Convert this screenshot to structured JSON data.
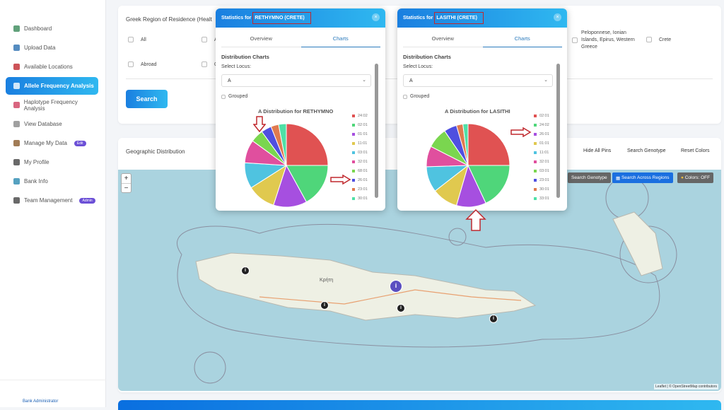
{
  "sidebar": {
    "items": [
      {
        "label": "Dashboard",
        "icon": "dashboard-icon",
        "color": "#3a8a5a"
      },
      {
        "label": "Upload Data",
        "icon": "upload-icon",
        "color": "#2a6fb0"
      },
      {
        "label": "Available Locations",
        "icon": "pin-icon",
        "color": "#c0282e"
      },
      {
        "label": "Allele Frequency Analysis",
        "icon": "chart-icon",
        "color": "#ffffff"
      },
      {
        "label": "Haplotype Frequency Analysis",
        "icon": "chart-icon",
        "color": "#d04060"
      },
      {
        "label": "View Database",
        "icon": "database-icon",
        "color": "#888888"
      },
      {
        "label": "Manage My Data",
        "icon": "pencil-icon",
        "color": "#8a5a2a",
        "badge": "Edit"
      },
      {
        "label": "My Profile",
        "icon": "user-icon",
        "color": "#444444"
      },
      {
        "label": "Bank Info",
        "icon": "bank-icon",
        "color": "#2a8ab0"
      },
      {
        "label": "Team Management",
        "icon": "team-icon",
        "color": "#444444",
        "badge": "Admin"
      }
    ],
    "footer": "Bank Administrator"
  },
  "filter": {
    "title": "Greek Region of Residence (Healt",
    "options": [
      "All",
      "A",
      "Abroad",
      "C",
      "Peloponnese, Ionian Islands, Epirus, Western Greece",
      "Crete"
    ],
    "search": "Search"
  },
  "geo": {
    "title": "Geographic Distribution",
    "links": [
      "Hide All Pins",
      "Search Genotype",
      "Reset Colors"
    ],
    "map_buttons": [
      "Search Genotype",
      "Search Across Regions",
      "Colors: OFF"
    ],
    "zoom_in": "+",
    "zoom_out": "−",
    "place": "Κρήτη",
    "attribution": "Leaflet | © OpenStreetMap contributors"
  },
  "popups": [
    {
      "prefix": "Statistics for",
      "region": "RETHYMNO (CRETE)",
      "tabs": [
        "Overview",
        "Charts"
      ],
      "section": "Distribution Charts",
      "locus_label": "Select Locus:",
      "locus": "A",
      "grouped": "Grouped",
      "close": "×"
    },
    {
      "prefix": "Statistics for",
      "region": "LASITHI (CRETE)",
      "tabs": [
        "Overview",
        "Charts"
      ],
      "section": "Distribution Charts",
      "locus_label": "Select Locus:",
      "locus": "A",
      "grouped": "Grouped",
      "close": "×"
    }
  ],
  "chart_data": [
    {
      "type": "pie",
      "title": "A Distribution for RETHYMNO",
      "categories": [
        "24:02",
        "02:01",
        "01:01",
        "11:01",
        "03:01",
        "32:01",
        "68:01",
        "26:01",
        "23:01",
        "30:01"
      ],
      "values": [
        25,
        17,
        13,
        11,
        10,
        9,
        5,
        4,
        3,
        3
      ],
      "colors": [
        "#e05252",
        "#4fd67a",
        "#a64fe0",
        "#e0c94f",
        "#4fc3e0",
        "#e04f9e",
        "#7ad64f",
        "#4f4fe0",
        "#e07a4f",
        "#4fe0a6"
      ]
    },
    {
      "type": "pie",
      "title": "A Distribution for LASITHI",
      "categories": [
        "02:01",
        "24:02",
        "26:01",
        "01:01",
        "11:01",
        "32:01",
        "03:01",
        "23:01",
        "30:01",
        "33:01"
      ],
      "values": [
        25,
        18,
        11.5,
        10,
        10,
        8,
        8,
        5,
        2.5,
        2
      ],
      "colors": [
        "#e05252",
        "#4fd67a",
        "#a64fe0",
        "#e0c94f",
        "#4fc3e0",
        "#e04f9e",
        "#7ad64f",
        "#4f4fe0",
        "#e07a4f",
        "#4fe0a6"
      ]
    }
  ]
}
